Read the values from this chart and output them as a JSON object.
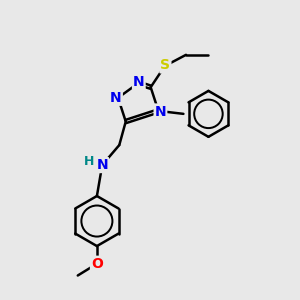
{
  "background_color": "#e8e8e8",
  "atom_colors": {
    "N": "#0000ee",
    "S": "#cccc00",
    "O": "#ff0000",
    "C": "#000000",
    "H": "#008888"
  },
  "bond_color": "#000000",
  "bond_width": 1.8,
  "font_size_atoms": 10,
  "font_size_h": 9
}
